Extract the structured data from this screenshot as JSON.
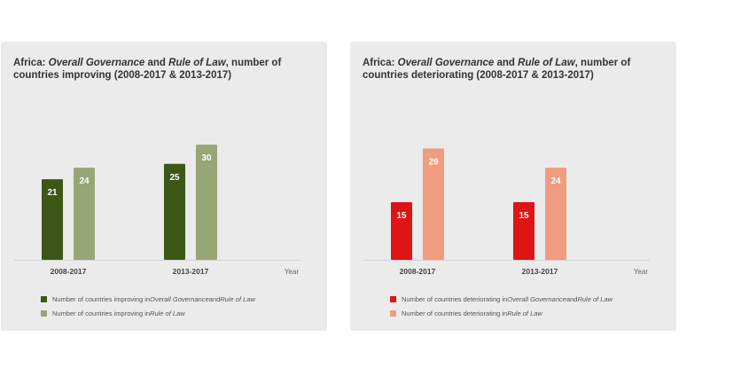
{
  "colors": {
    "improve_overall": "#3d5716",
    "improve_law": "#98a675",
    "deteriorate_overall": "#dd1515",
    "deteriorate_law": "#f09c80"
  },
  "chart_data": [
    {
      "type": "bar",
      "title_parts": {
        "prefix": "Africa: ",
        "overall": "Overall Governance",
        "and": " and ",
        "law": "Rule of Law",
        "suffix": ", number of countries improving (2008-2017 & 2013-2017)"
      },
      "categories": [
        "2008-2017",
        "2013-2017"
      ],
      "xlabel": "Year",
      "ylim": [
        0,
        30
      ],
      "series": [
        {
          "color": "#3d5716",
          "values": [
            21,
            25
          ],
          "legend_parts": {
            "prefix": "Number of countries improving in ",
            "overall": "Overall Governance",
            "and": " and ",
            "law": "Rule of Law"
          }
        },
        {
          "color": "#98a675",
          "values": [
            24,
            30
          ],
          "legend_parts": {
            "prefix": "Number of countries improving in ",
            "overall": "",
            "and": "",
            "law": "Rule of Law"
          }
        }
      ]
    },
    {
      "type": "bar",
      "title_parts": {
        "prefix": "Africa: ",
        "overall": "Overall Governance",
        "and": " and ",
        "law": "Rule of Law",
        "suffix": ", number of countries deteriorating (2008-2017 & 2013-2017)"
      },
      "categories": [
        "2008-2017",
        "2013-2017"
      ],
      "xlabel": "Year",
      "ylim": [
        0,
        30
      ],
      "series": [
        {
          "color": "#dd1515",
          "values": [
            15,
            15
          ],
          "legend_parts": {
            "prefix": "Number of countries deteriorating in ",
            "overall": "Overall Governance",
            "and": " and ",
            "law": "Rule of Law"
          }
        },
        {
          "color": "#f09c80",
          "values": [
            29,
            24
          ],
          "legend_parts": {
            "prefix": "Number of countries deteriorating in ",
            "overall": "",
            "and": "",
            "law": "Rule of Law"
          }
        }
      ]
    }
  ]
}
